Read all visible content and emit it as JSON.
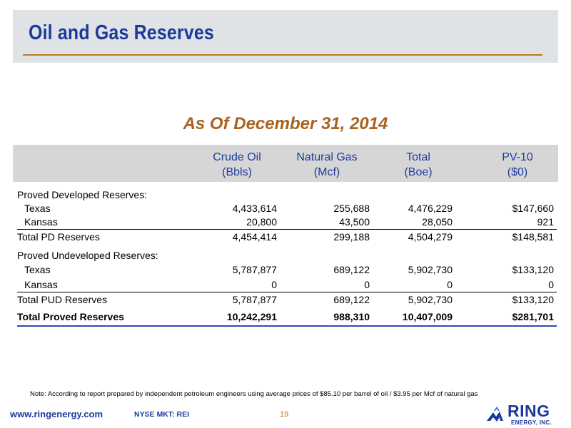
{
  "header": {
    "title": "Oil and Gas Reserves"
  },
  "subtitle": "As Of December 31, 2014",
  "table": {
    "columns": [
      {
        "line1": "Crude Oil",
        "line2": "(Bbls)"
      },
      {
        "line1": "Natural Gas",
        "line2": "(Mcf)"
      },
      {
        "line1": "Total",
        "line2": "(Boe)"
      },
      {
        "line1": "PV-10",
        "line2": "($0)"
      }
    ],
    "rows": [
      {
        "label": "Proved Developed Reserves:",
        "values": [
          "",
          "",
          "",
          ""
        ]
      },
      {
        "label": "Texas",
        "values": [
          "4,433,614",
          "255,688",
          "4,476,229",
          "$147,660"
        ]
      },
      {
        "label": "Kansas",
        "values": [
          "20,800",
          "43,500",
          "28,050",
          "921"
        ]
      },
      {
        "label": "Total PD Reserves",
        "values": [
          "4,454,414",
          "299,188",
          "4,504,279",
          "$148,581"
        ]
      },
      {
        "label": "Proved Undeveloped Reserves:",
        "values": [
          "",
          "",
          "",
          ""
        ]
      },
      {
        "label": "Texas",
        "values": [
          "5,787,877",
          "689,122",
          "5,902,730",
          "$133,120"
        ]
      },
      {
        "label": "Kansas",
        "values": [
          "0",
          "0",
          "0",
          "0"
        ]
      },
      {
        "label": "Total PUD Reserves",
        "values": [
          "5,787,877",
          "689,122",
          "5,902,730",
          "$133,120"
        ]
      },
      {
        "label": "Total Proved Reserves",
        "values": [
          "10,242,291",
          "988,310",
          "10,407,009",
          "$281,701"
        ]
      }
    ]
  },
  "note": "Note: According to report prepared by independent petroleum engineers using average prices of $85.10 per barrel of oil / $3.95 per Mcf of natural gas",
  "footer": {
    "url": "www.ringenergy.com",
    "ticker": "NYSE MKT: REI",
    "page": "19"
  },
  "logo": {
    "word": "RING",
    "sub": "ENERGY, INC."
  },
  "colors": {
    "title": "#1b3a9c",
    "accent": "#b87a22",
    "subtitle": "#a8621e",
    "header_bg": "#dfe3e5",
    "table_header_bg": "#d6d6d6"
  }
}
